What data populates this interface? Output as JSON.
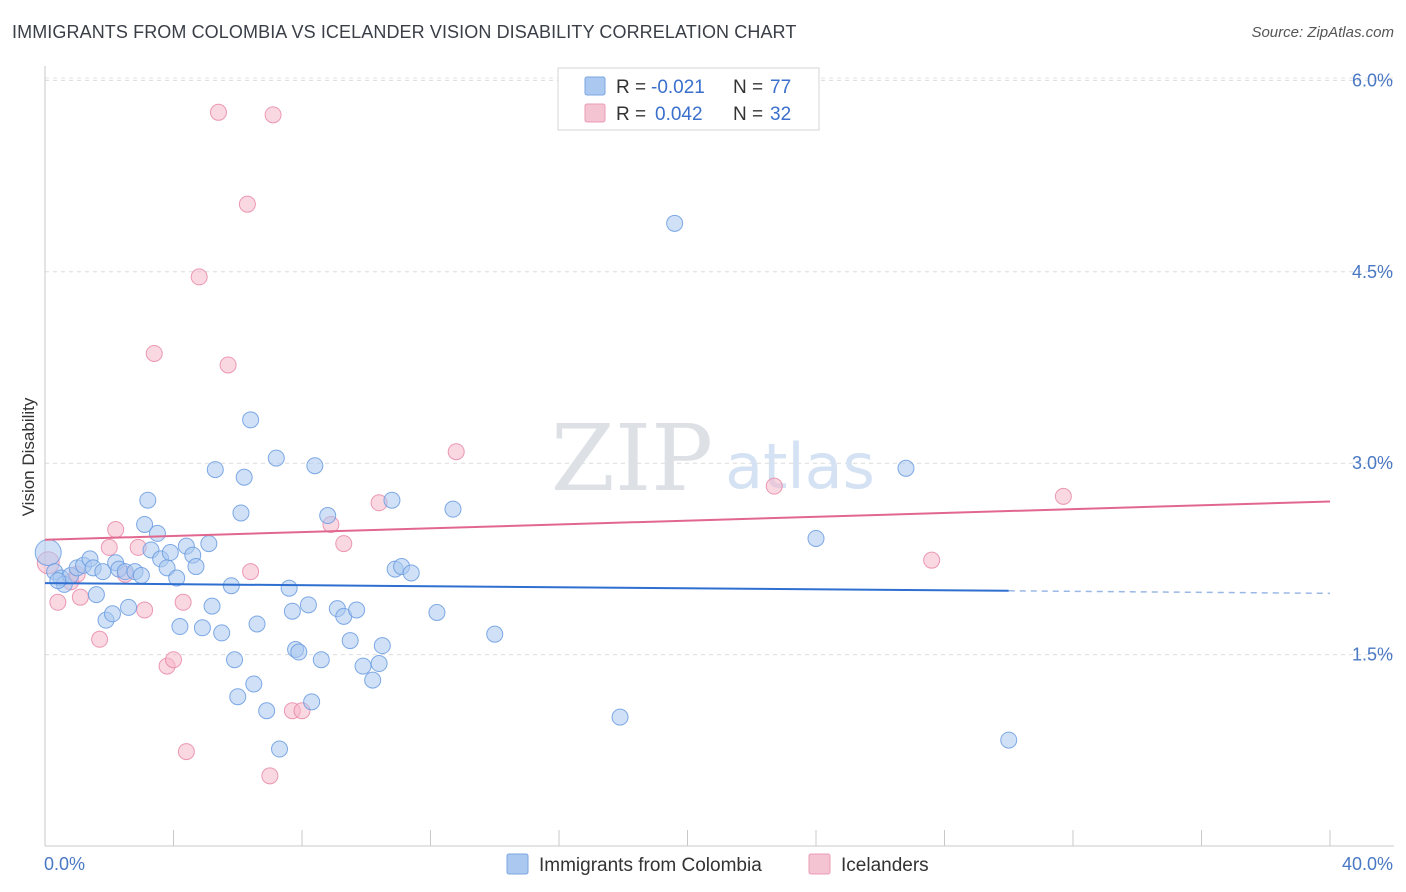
{
  "title": "IMMIGRANTS FROM COLOMBIA VS ICELANDER VISION DISABILITY CORRELATION CHART",
  "source": "Source: ZipAtlas.com",
  "watermark": {
    "zip": "ZIP",
    "atlas": "atlas"
  },
  "legend": {
    "r_label": "R =",
    "n_label": "N =",
    "rows": [
      {
        "r": "-0.021",
        "n": "77",
        "color": "#aac8f0"
      },
      {
        "r": "0.042",
        "n": "32",
        "color": "#f5b8cb"
      }
    ]
  },
  "chart_data": {
    "type": "scatter",
    "ylabel": "Vision Disability",
    "xlim": [
      0,
      40
    ],
    "ylim": [
      0,
      6.2
    ],
    "x_tick_labels": [
      {
        "value": 0,
        "label": "0.0%"
      },
      {
        "value": 40,
        "label": "40.0%"
      }
    ],
    "y_tick_labels": [
      {
        "value": 1.5,
        "label": "1.5%"
      },
      {
        "value": 3.0,
        "label": "3.0%"
      },
      {
        "value": 4.5,
        "label": "4.5%"
      },
      {
        "value": 6.0,
        "label": "6.0%"
      }
    ],
    "series": [
      {
        "name": "Immigrants from Colombia",
        "color": "#6a9be0",
        "fill": "#aac8f0",
        "trend": {
          "x": [
            0,
            30
          ],
          "y": [
            2.06,
            2.0
          ],
          "dashed_to": [
            40,
            1.98
          ]
        },
        "points": [
          [
            0.1,
            2.3
          ],
          [
            0.3,
            2.15
          ],
          [
            0.5,
            2.1
          ],
          [
            0.6,
            2.05
          ],
          [
            0.8,
            2.12
          ],
          [
            1.0,
            2.18
          ],
          [
            1.2,
            2.2
          ],
          [
            1.4,
            2.25
          ],
          [
            1.5,
            2.18
          ],
          [
            1.6,
            1.97
          ],
          [
            1.8,
            2.15
          ],
          [
            1.9,
            1.77
          ],
          [
            2.1,
            1.82
          ],
          [
            2.2,
            2.22
          ],
          [
            2.3,
            2.17
          ],
          [
            2.5,
            2.15
          ],
          [
            2.6,
            1.87
          ],
          [
            2.8,
            2.15
          ],
          [
            3.0,
            2.12
          ],
          [
            3.1,
            2.52
          ],
          [
            3.2,
            2.71
          ],
          [
            3.3,
            2.32
          ],
          [
            3.5,
            2.45
          ],
          [
            3.6,
            2.25
          ],
          [
            3.8,
            2.18
          ],
          [
            3.9,
            2.3
          ],
          [
            4.1,
            2.1
          ],
          [
            4.2,
            1.72
          ],
          [
            4.4,
            2.35
          ],
          [
            4.6,
            2.28
          ],
          [
            4.7,
            2.19
          ],
          [
            4.9,
            1.71
          ],
          [
            5.1,
            2.37
          ],
          [
            5.2,
            1.88
          ],
          [
            5.3,
            2.95
          ],
          [
            5.5,
            1.67
          ],
          [
            5.8,
            2.04
          ],
          [
            5.9,
            1.46
          ],
          [
            6.0,
            1.17
          ],
          [
            6.1,
            2.61
          ],
          [
            6.2,
            2.89
          ],
          [
            6.4,
            3.34
          ],
          [
            6.5,
            1.27
          ],
          [
            6.6,
            1.74
          ],
          [
            6.9,
            1.06
          ],
          [
            7.2,
            3.04
          ],
          [
            7.3,
            0.76
          ],
          [
            7.6,
            2.02
          ],
          [
            7.7,
            1.84
          ],
          [
            7.8,
            1.54
          ],
          [
            7.9,
            1.52
          ],
          [
            8.2,
            1.89
          ],
          [
            8.3,
            1.13
          ],
          [
            8.4,
            2.98
          ],
          [
            8.6,
            1.46
          ],
          [
            8.8,
            2.59
          ],
          [
            9.1,
            1.86
          ],
          [
            9.3,
            1.8
          ],
          [
            9.5,
            1.61
          ],
          [
            9.7,
            1.85
          ],
          [
            9.9,
            1.41
          ],
          [
            10.2,
            1.3
          ],
          [
            10.4,
            1.43
          ],
          [
            10.5,
            1.57
          ],
          [
            10.8,
            2.71
          ],
          [
            10.9,
            2.17
          ],
          [
            11.1,
            2.19
          ],
          [
            11.4,
            2.14
          ],
          [
            12.2,
            1.83
          ],
          [
            12.7,
            2.64
          ],
          [
            14.0,
            1.66
          ],
          [
            17.9,
            1.01
          ],
          [
            19.6,
            4.88
          ],
          [
            24.0,
            2.41
          ],
          [
            26.8,
            2.96
          ],
          [
            30.0,
            0.83
          ],
          [
            0.4,
            2.08
          ]
        ]
      },
      {
        "name": "Icelanders",
        "color": "#e888a8",
        "fill": "#f5b8cb",
        "trend": {
          "x": [
            0,
            40
          ],
          "y": [
            2.4,
            2.7
          ]
        },
        "points": [
          [
            0.1,
            2.22
          ],
          [
            0.4,
            1.91
          ],
          [
            0.8,
            2.07
          ],
          [
            1.0,
            2.13
          ],
          [
            1.1,
            1.95
          ],
          [
            1.7,
            1.62
          ],
          [
            2.0,
            2.34
          ],
          [
            2.2,
            2.48
          ],
          [
            2.5,
            2.13
          ],
          [
            2.9,
            2.34
          ],
          [
            3.1,
            1.85
          ],
          [
            3.4,
            3.86
          ],
          [
            3.8,
            1.41
          ],
          [
            4.0,
            1.46
          ],
          [
            4.3,
            1.91
          ],
          [
            4.4,
            0.74
          ],
          [
            4.8,
            4.46
          ],
          [
            5.4,
            5.75
          ],
          [
            5.7,
            3.77
          ],
          [
            6.3,
            5.03
          ],
          [
            6.4,
            2.15
          ],
          [
            7.0,
            0.55
          ],
          [
            7.1,
            5.73
          ],
          [
            7.7,
            1.06
          ],
          [
            8.0,
            1.06
          ],
          [
            8.9,
            2.52
          ],
          [
            9.3,
            2.37
          ],
          [
            10.4,
            2.69
          ],
          [
            12.8,
            3.09
          ],
          [
            22.7,
            2.82
          ],
          [
            27.6,
            2.24
          ],
          [
            31.7,
            2.74
          ]
        ]
      }
    ]
  }
}
